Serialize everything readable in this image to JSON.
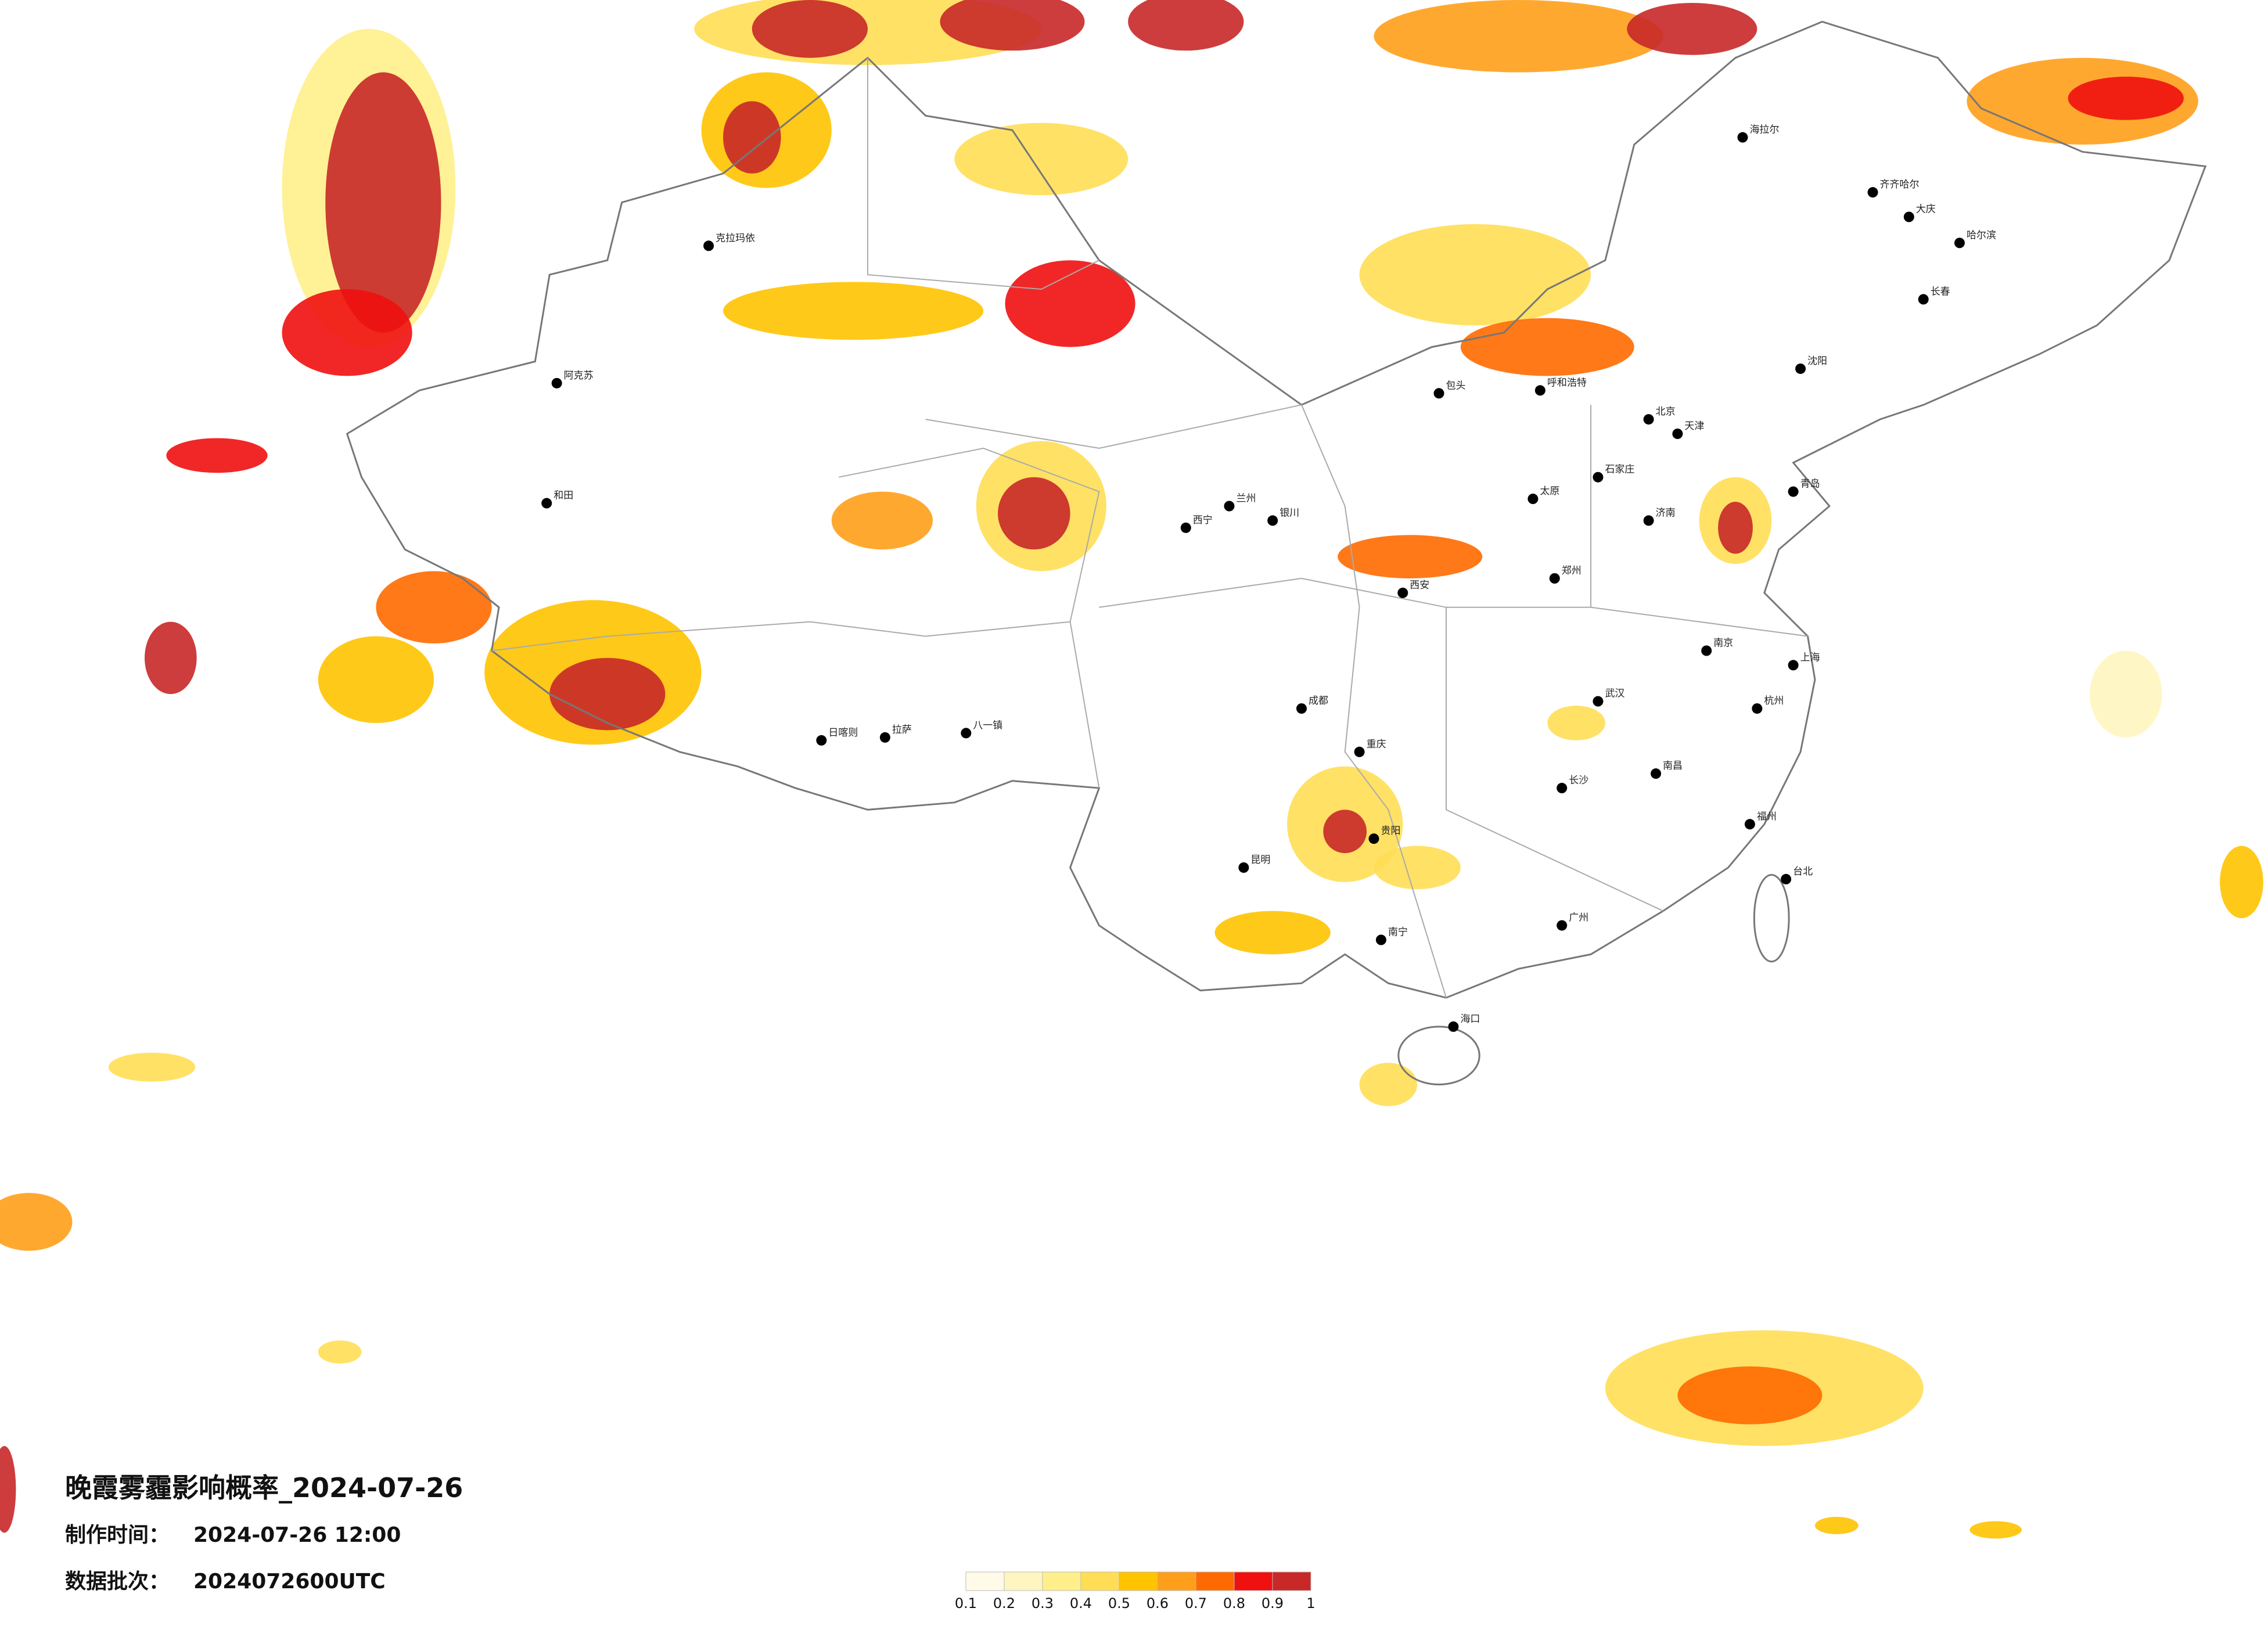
{
  "header": {
    "title": "晚霞雾霾影响概率_2024-07-26",
    "time_label": "制作时间：",
    "time_value": "2024-07-26 12:00",
    "batch_label": "数据批次：",
    "batch_value": "2024072600UTC"
  },
  "legend": {
    "colors": [
      "#fffbe8",
      "#fff5c0",
      "#ffef8a",
      "#ffde55",
      "#ffc300",
      "#ff9e1a",
      "#ff6a00",
      "#f01010",
      "#c82828"
    ],
    "labels": [
      0.1,
      0.2,
      0.3,
      0.4,
      0.5,
      0.6,
      0.7,
      0.8,
      0.9,
      1
    ]
  },
  "cities": [
    "海拉尔",
    "齐齐哈尔",
    "哈尔滨",
    "长春",
    "沈阳",
    "呼和浩特",
    "北京",
    "天津",
    "石家庄",
    "太原",
    "济南",
    "青岛",
    "郑州",
    "西安",
    "兰州",
    "西宁",
    "银川",
    "克拉玛依",
    "阿克苏",
    "和田",
    "日喀则",
    "拉萨",
    "八一镇",
    "成都",
    "重庆",
    "贵阳",
    "昆明",
    "南宁",
    "长沙",
    "武汉",
    "南京",
    "上海",
    "杭州",
    "南昌",
    "福州",
    "广州",
    "海口",
    "台北",
    "包头",
    "大庆"
  ]
}
